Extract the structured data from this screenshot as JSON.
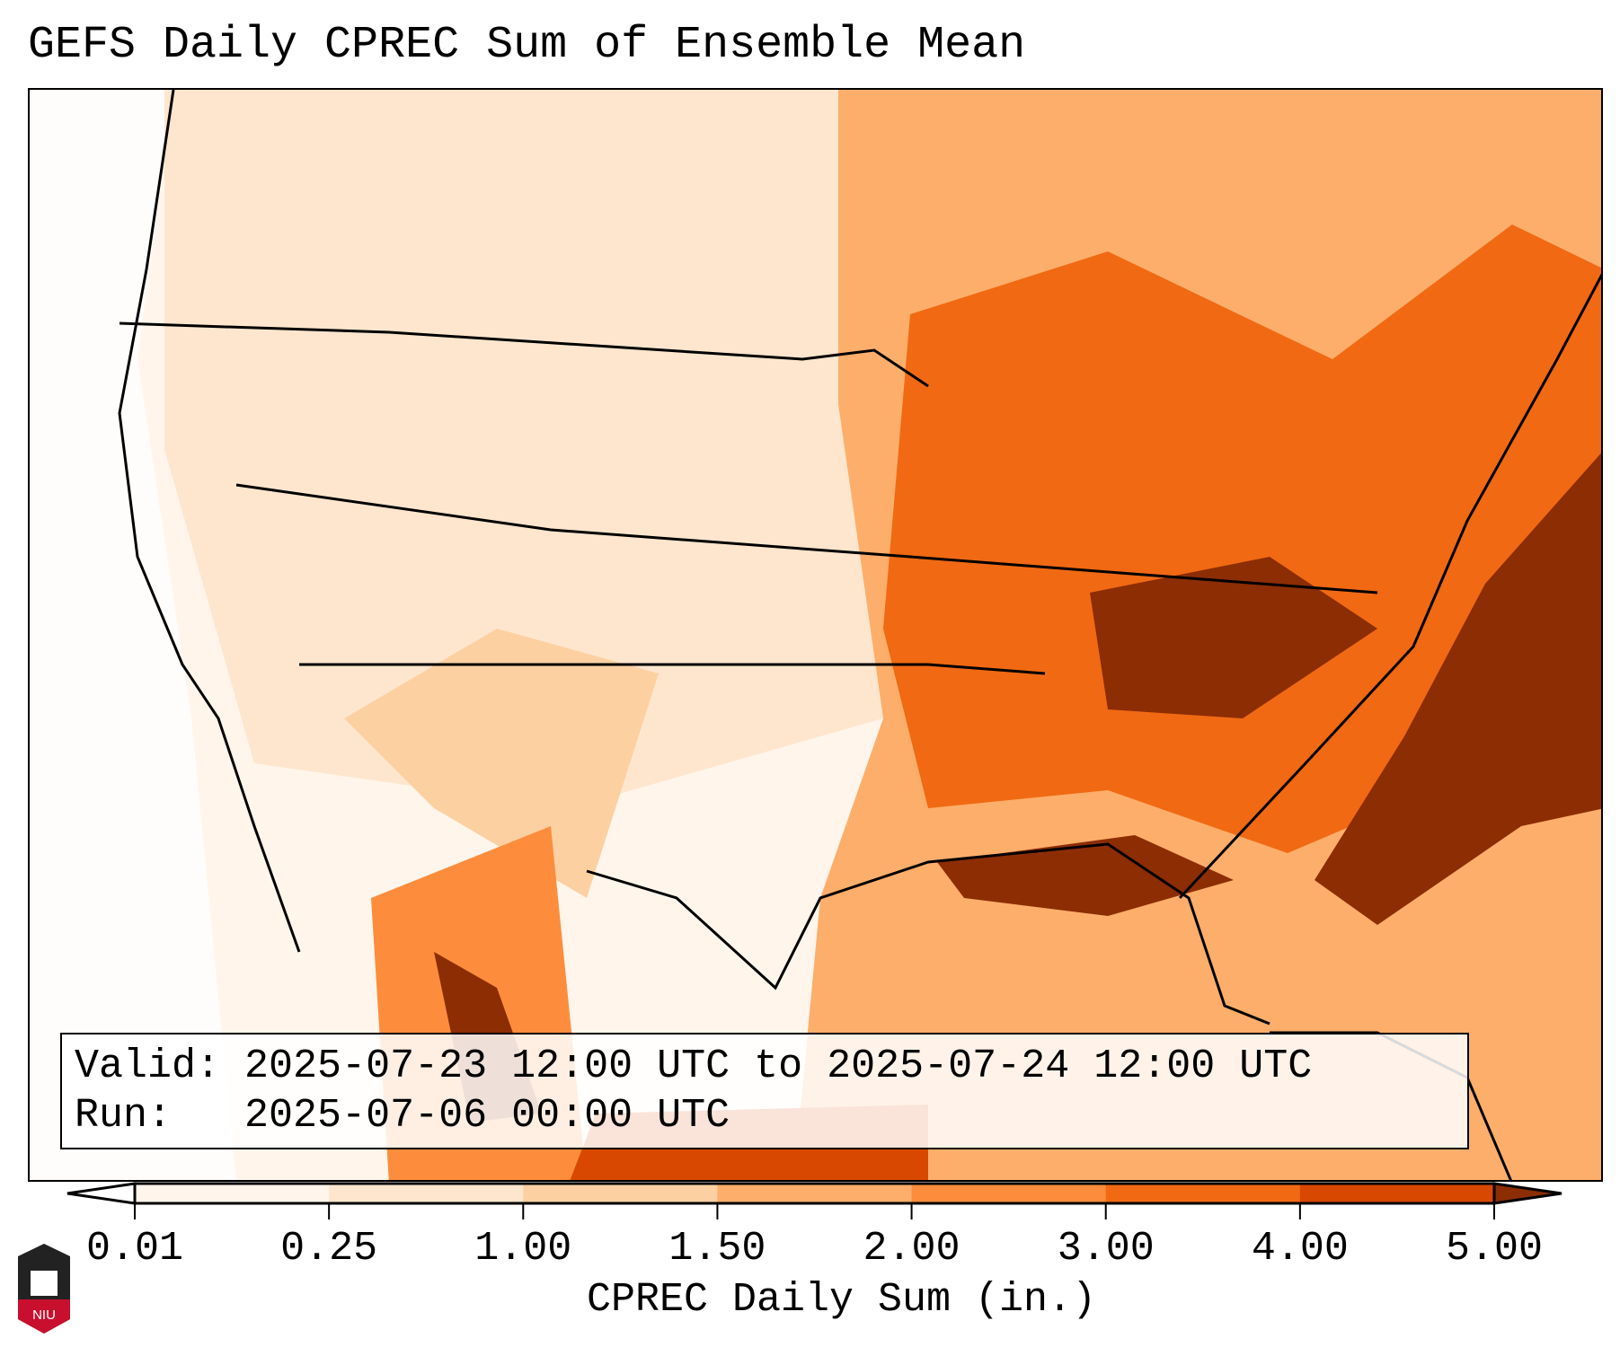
{
  "title": "GEFS Daily CPREC Sum of Ensemble Mean",
  "info": {
    "valid_label": "Valid:",
    "valid_value": "2025-07-23 12:00 UTC to 2025-07-24 12:00 UTC",
    "run_label": "Run:",
    "run_value": "2025-07-06 00:00 UTC"
  },
  "colorbar": {
    "label": "CPREC Daily Sum (in.)",
    "ticks": [
      "0.01",
      "0.25",
      "1.00",
      "1.50",
      "2.00",
      "3.00",
      "4.00",
      "5.00"
    ],
    "colors": [
      "#fff5eb",
      "#fee6ce",
      "#fdd0a2",
      "#fdae6b",
      "#fd8d3c",
      "#f16913",
      "#d94801"
    ],
    "under_color": "#ffffff",
    "over_color": "#8c2d04"
  },
  "logo": {
    "text": "NIU"
  }
}
